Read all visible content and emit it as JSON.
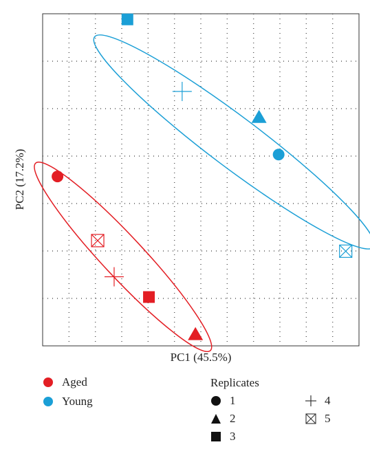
{
  "chart_data": {
    "type": "scatter",
    "xlabel": "PC1 (45.5%)",
    "ylabel": "PC2 (17.2%)",
    "xlim": [
      0,
      100
    ],
    "ylim": [
      0,
      100
    ],
    "grid": true,
    "colors": {
      "Aged": "#e31e24",
      "Young": "#1b9fd6"
    },
    "marker_names": {
      "1": "circle",
      "2": "triangle",
      "3": "square",
      "4": "plus",
      "5": "boxed-x"
    },
    "points": [
      {
        "group": "Aged",
        "replicate": 1,
        "x": 4.7,
        "y": 51.0
      },
      {
        "group": "Aged",
        "replicate": 2,
        "x": 48.3,
        "y": 3.4
      },
      {
        "group": "Aged",
        "replicate": 3,
        "x": 33.6,
        "y": 14.7
      },
      {
        "group": "Aged",
        "replicate": 4,
        "x": 22.6,
        "y": 20.8
      },
      {
        "group": "Aged",
        "replicate": 5,
        "x": 17.4,
        "y": 31.7
      },
      {
        "group": "Young",
        "replicate": 1,
        "x": 74.6,
        "y": 57.6
      },
      {
        "group": "Young",
        "replicate": 2,
        "x": 68.4,
        "y": 68.8
      },
      {
        "group": "Young",
        "replicate": 3,
        "x": 26.8,
        "y": 98.3
      },
      {
        "group": "Young",
        "replicate": 4,
        "x": 44.1,
        "y": 76.6
      },
      {
        "group": "Young",
        "replicate": 5,
        "x": 95.8,
        "y": 28.5
      }
    ],
    "ellipses": [
      {
        "group": "Aged",
        "cx": 25.4,
        "cy": 26.8,
        "rx": 40.5,
        "ry": 6.3,
        "angle": -47
      },
      {
        "group": "Young",
        "cx": 60.5,
        "cy": 61.4,
        "rx": 55.2,
        "ry": 7.8,
        "angle": -37
      }
    ]
  },
  "legend": {
    "groups": [
      {
        "label": "Aged",
        "color": "#e31e24"
      },
      {
        "label": "Young",
        "color": "#1b9fd6"
      }
    ],
    "replicates_title": "Replicates",
    "replicates": [
      {
        "label": "1",
        "marker": "circle"
      },
      {
        "label": "2",
        "marker": "triangle"
      },
      {
        "label": "3",
        "marker": "square"
      },
      {
        "label": "4",
        "marker": "plus"
      },
      {
        "label": "5",
        "marker": "boxed-x"
      }
    ]
  }
}
